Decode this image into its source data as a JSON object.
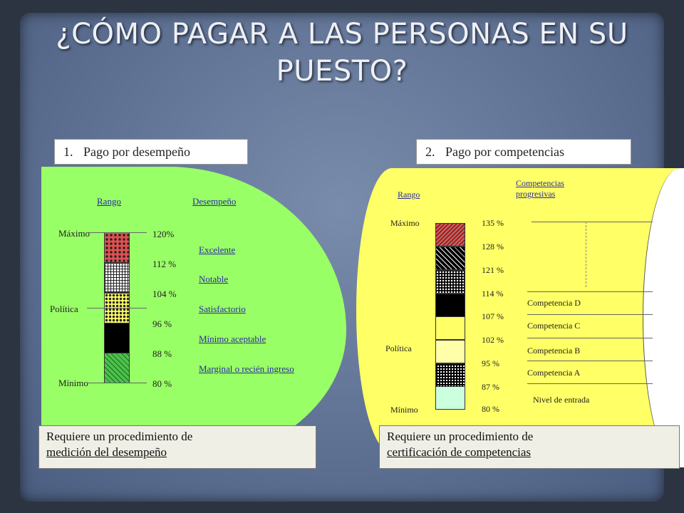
{
  "title": "¿CÓMO PAGAR A LAS PERSONAS EN SU PUESTO?",
  "left": {
    "header_num": "1.",
    "header": "Pago por desempeño",
    "col_rango": "Rango",
    "col_desempeno": "Desempeño",
    "maximo": "Máximo",
    "politica": "Política",
    "minimo": "Mínimo",
    "percents": [
      "120%",
      "112 %",
      "104 %",
      "96 %",
      "88 %",
      "80 %"
    ],
    "levels": [
      "Excelente",
      "Notable",
      "Satisfactorio",
      "Mínimo aceptable",
      "Marginal o recién ingreso"
    ],
    "req_line1": "Requiere un procedimiento de",
    "req_line2": "medición  del desempeño"
  },
  "right": {
    "header_num": "2.",
    "header": "Pago por competencias",
    "col_rango": "Rango",
    "col_comp_1": "Competencias",
    "col_comp_2": "progresivas",
    "maximo": "Máximo",
    "politica": "Política",
    "minimo": "Mínimo",
    "percents": [
      "135 %",
      "128 %",
      "121 %",
      "114 %",
      "107 %",
      "102 %",
      "95 %",
      "87 %",
      "80 %"
    ],
    "levels": [
      "Competencia D",
      "Competencia C",
      "Competencia B",
      "Competencia A",
      "Nivel de entrada"
    ],
    "req_line1": "Requiere un procedimiento de",
    "req_line2": "certificación de competencias"
  },
  "colors": {
    "green": "#99ff66",
    "yellow": "#ffff66",
    "background": "#5f7294"
  }
}
